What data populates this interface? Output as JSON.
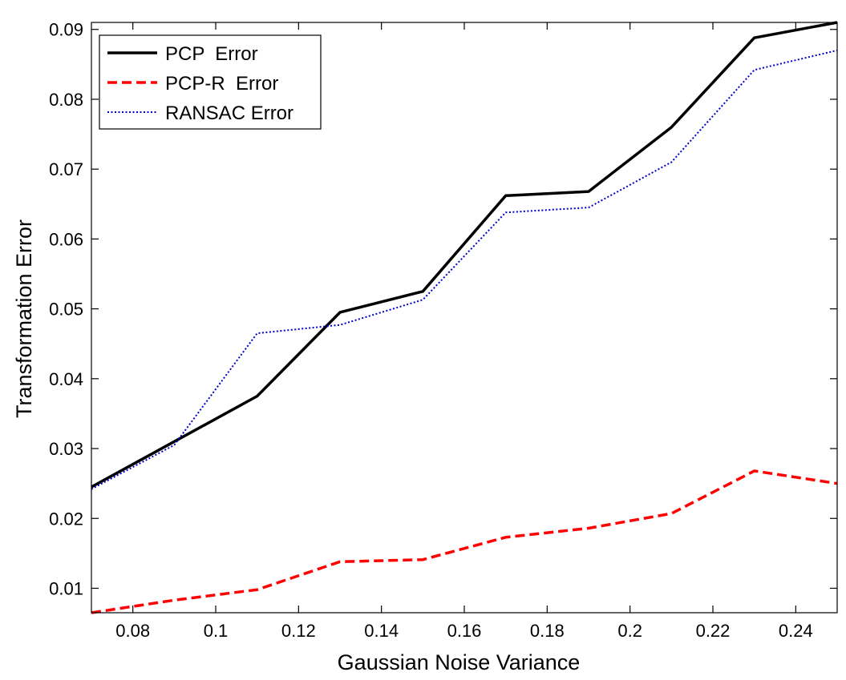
{
  "chart_data": {
    "type": "line",
    "title": "",
    "xlabel": "Gaussian Noise Variance",
    "ylabel": "Transformation Error",
    "xlim": [
      0.07,
      0.25
    ],
    "ylim": [
      0.0065,
      0.091
    ],
    "xticks": [
      0.08,
      0.1,
      0.12,
      0.14,
      0.16,
      0.18,
      0.2,
      0.22,
      0.24
    ],
    "xtick_labels": [
      "0.08",
      "0.1",
      "0.12",
      "0.14",
      "0.16",
      "0.18",
      "0.2",
      "0.22",
      "0.24"
    ],
    "yticks": [
      0.01,
      0.02,
      0.03,
      0.04,
      0.05,
      0.06,
      0.07,
      0.08,
      0.09
    ],
    "ytick_labels": [
      "0.01",
      "0.02",
      "0.03",
      "0.04",
      "0.05",
      "0.06",
      "0.07",
      "0.08",
      "0.09"
    ],
    "grid": false,
    "legend_position": "top-left",
    "x": [
      0.07,
      0.09,
      0.11,
      0.13,
      0.15,
      0.17,
      0.19,
      0.21,
      0.23,
      0.25
    ],
    "series": [
      {
        "name": "PCP  Error",
        "key": "pcp",
        "color": "#000000",
        "style": "solid",
        "values": [
          0.0245,
          0.031,
          0.0375,
          0.0495,
          0.0525,
          0.0662,
          0.0668,
          0.076,
          0.0888,
          0.091
        ]
      },
      {
        "name": "PCP-R  Error",
        "key": "pcpr",
        "color": "#ff0000",
        "style": "dashed",
        "values": [
          0.0065,
          0.0083,
          0.0098,
          0.0138,
          0.0141,
          0.0173,
          0.0186,
          0.0207,
          0.0268,
          0.025
        ]
      },
      {
        "name": "RANSAC Error",
        "key": "ransac",
        "color": "#0000cc",
        "style": "dotted",
        "values": [
          0.0242,
          0.0305,
          0.0465,
          0.0477,
          0.0513,
          0.0638,
          0.0645,
          0.071,
          0.0842,
          0.087
        ]
      }
    ]
  }
}
